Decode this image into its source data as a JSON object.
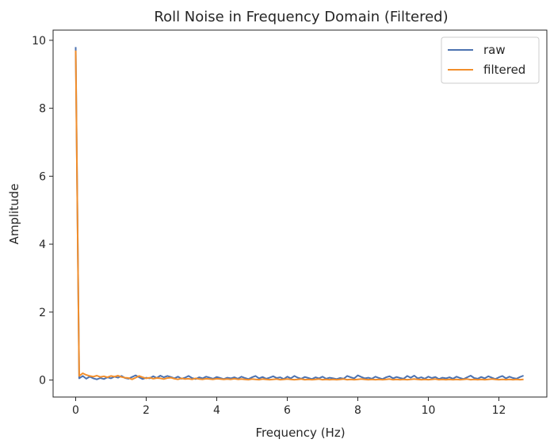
{
  "chart_data": {
    "type": "line",
    "title": "Roll Noise in Frequency Domain (Filtered)",
    "xlabel": "Frequency (Hz)",
    "ylabel": "Amplitude",
    "xlim": [
      -0.64,
      13.36
    ],
    "ylim": [
      -0.5,
      10.3
    ],
    "xticks": [
      0,
      2,
      4,
      6,
      8,
      10,
      12
    ],
    "yticks": [
      0,
      2,
      4,
      6,
      8,
      10
    ],
    "legend_position": "top-right",
    "series": [
      {
        "name": "raw",
        "color": "#4c72b0",
        "x": [
          0,
          0.1,
          0.2,
          0.3,
          0.4,
          0.5,
          0.6,
          0.7,
          0.8,
          0.9,
          1.0,
          1.1,
          1.2,
          1.3,
          1.4,
          1.5,
          1.6,
          1.7,
          1.8,
          1.9,
          2.0,
          2.1,
          2.2,
          2.3,
          2.4,
          2.5,
          2.6,
          2.7,
          2.8,
          2.9,
          3.0,
          3.1,
          3.2,
          3.3,
          3.4,
          3.5,
          3.6,
          3.7,
          3.8,
          3.9,
          4.0,
          4.1,
          4.2,
          4.3,
          4.4,
          4.5,
          4.6,
          4.7,
          4.8,
          4.9,
          5.0,
          5.1,
          5.2,
          5.3,
          5.4,
          5.5,
          5.6,
          5.7,
          5.8,
          5.9,
          6.0,
          6.1,
          6.2,
          6.3,
          6.4,
          6.5,
          6.6,
          6.7,
          6.8,
          6.9,
          7.0,
          7.1,
          7.2,
          7.3,
          7.4,
          7.5,
          7.6,
          7.7,
          7.8,
          7.9,
          8.0,
          8.1,
          8.2,
          8.3,
          8.4,
          8.5,
          8.6,
          8.7,
          8.8,
          8.9,
          9.0,
          9.1,
          9.2,
          9.3,
          9.4,
          9.5,
          9.6,
          9.7,
          9.8,
          9.9,
          10.0,
          10.1,
          10.2,
          10.3,
          10.4,
          10.5,
          10.6,
          10.7,
          10.8,
          10.9,
          11.0,
          11.1,
          11.2,
          11.3,
          11.4,
          11.5,
          11.6,
          11.7,
          11.8,
          11.9,
          12.0,
          12.1,
          12.2,
          12.3,
          12.4,
          12.5,
          12.6,
          12.7
        ],
        "y": [
          9.8,
          0.05,
          0.12,
          0.04,
          0.1,
          0.05,
          0.02,
          0.06,
          0.03,
          0.08,
          0.05,
          0.1,
          0.07,
          0.12,
          0.06,
          0.04,
          0.09,
          0.14,
          0.08,
          0.03,
          0.07,
          0.05,
          0.11,
          0.06,
          0.13,
          0.08,
          0.12,
          0.09,
          0.05,
          0.1,
          0.04,
          0.07,
          0.12,
          0.06,
          0.03,
          0.08,
          0.05,
          0.1,
          0.07,
          0.04,
          0.09,
          0.06,
          0.03,
          0.07,
          0.05,
          0.08,
          0.04,
          0.1,
          0.06,
          0.03,
          0.08,
          0.12,
          0.05,
          0.09,
          0.04,
          0.07,
          0.11,
          0.06,
          0.08,
          0.03,
          0.1,
          0.05,
          0.12,
          0.07,
          0.04,
          0.09,
          0.06,
          0.03,
          0.08,
          0.05,
          0.1,
          0.04,
          0.07,
          0.05,
          0.03,
          0.06,
          0.04,
          0.12,
          0.08,
          0.05,
          0.14,
          0.09,
          0.05,
          0.07,
          0.04,
          0.1,
          0.06,
          0.03,
          0.08,
          0.11,
          0.05,
          0.09,
          0.06,
          0.04,
          0.12,
          0.07,
          0.13,
          0.05,
          0.08,
          0.04,
          0.1,
          0.06,
          0.09,
          0.03,
          0.07,
          0.05,
          0.08,
          0.04,
          0.1,
          0.06,
          0.03,
          0.08,
          0.13,
          0.06,
          0.04,
          0.09,
          0.05,
          0.11,
          0.07,
          0.03,
          0.08,
          0.12,
          0.05,
          0.1,
          0.06,
          0.04,
          0.09,
          0.13
        ]
      },
      {
        "name": "filtered",
        "color": "#f28e2b",
        "x": [
          0,
          0.1,
          0.2,
          0.3,
          0.4,
          0.5,
          0.6,
          0.7,
          0.8,
          0.9,
          1.0,
          1.1,
          1.2,
          1.3,
          1.4,
          1.5,
          1.6,
          1.7,
          1.8,
          1.9,
          2.0,
          2.1,
          2.2,
          2.3,
          2.4,
          2.5,
          2.6,
          2.7,
          2.8,
          2.9,
          3.0,
          3.1,
          3.2,
          3.3,
          3.4,
          3.5,
          3.6,
          3.7,
          3.8,
          3.9,
          4.0,
          4.1,
          4.2,
          4.3,
          4.4,
          4.5,
          4.6,
          4.7,
          4.8,
          4.9,
          5.0,
          5.1,
          5.2,
          5.3,
          5.4,
          5.5,
          5.6,
          5.7,
          5.8,
          5.9,
          6.0,
          6.1,
          6.2,
          6.3,
          6.4,
          6.5,
          6.6,
          6.7,
          6.8,
          6.9,
          7.0,
          7.1,
          7.2,
          7.3,
          7.4,
          7.5,
          7.6,
          7.7,
          7.8,
          7.9,
          8.0,
          8.1,
          8.2,
          8.3,
          8.4,
          8.5,
          8.6,
          8.7,
          8.8,
          8.9,
          9.0,
          9.1,
          9.2,
          9.3,
          9.4,
          9.5,
          9.6,
          9.7,
          9.8,
          9.9,
          10.0,
          10.1,
          10.2,
          10.3,
          10.4,
          10.5,
          10.6,
          10.7,
          10.8,
          10.9,
          11.0,
          11.1,
          11.2,
          11.3,
          11.4,
          11.5,
          11.6,
          11.7,
          11.8,
          11.9,
          12.0,
          12.1,
          12.2,
          12.3,
          12.4,
          12.5,
          12.6,
          12.7
        ],
        "y": [
          9.7,
          0.12,
          0.2,
          0.15,
          0.12,
          0.1,
          0.13,
          0.09,
          0.11,
          0.08,
          0.12,
          0.1,
          0.13,
          0.09,
          0.07,
          0.06,
          0.02,
          0.07,
          0.12,
          0.08,
          0.05,
          0.07,
          0.04,
          0.06,
          0.05,
          0.03,
          0.06,
          0.07,
          0.04,
          0.02,
          0.05,
          0.03,
          0.04,
          0.02,
          0.05,
          0.03,
          0.02,
          0.04,
          0.03,
          0.02,
          0.04,
          0.03,
          0.02,
          0.03,
          0.02,
          0.04,
          0.02,
          0.03,
          0.02,
          0.01,
          0.03,
          0.02,
          0.01,
          0.03,
          0.02,
          0.01,
          0.02,
          0.03,
          0.01,
          0.02,
          0.03,
          0.02,
          0.01,
          0.02,
          0.03,
          0.01,
          0.02,
          0.01,
          0.02,
          0.03,
          0.01,
          0.02,
          0.01,
          0.02,
          0.01,
          0.02,
          0.03,
          0.01,
          0.02,
          0.01,
          0.02,
          0.03,
          0.02,
          0.01,
          0.02,
          0.01,
          0.02,
          0.01,
          0.02,
          0.03,
          0.01,
          0.02,
          0.01,
          0.02,
          0.01,
          0.02,
          0.03,
          0.02,
          0.01,
          0.02,
          0.01,
          0.02,
          0.03,
          0.01,
          0.02,
          0.01,
          0.02,
          0.01,
          0.02,
          0.01,
          0.02,
          0.03,
          0.01,
          0.02,
          0.01,
          0.02,
          0.01,
          0.02,
          0.03,
          0.02,
          0.01,
          0.02,
          0.01,
          0.02,
          0.01,
          0.02,
          0.01,
          0.02
        ]
      }
    ]
  }
}
